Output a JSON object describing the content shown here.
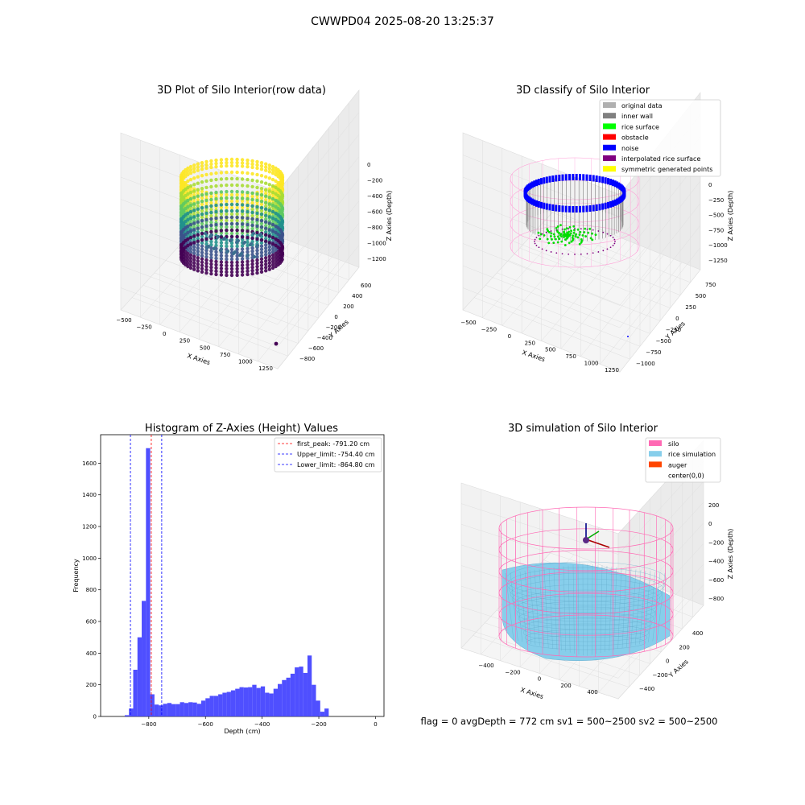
{
  "suptitle": "CWWPD04 2025-08-20 13:25:37",
  "footer": "flag = 0     avgDepth = 772 cm  sv1 = 500~2500  sv2 = 500~2500",
  "panel1": {
    "title": "3D Plot of Silo Interior(row data)",
    "xlabel": "X Axies",
    "ylabel": "Y Axies",
    "zlabel": "Z Axies (Depth)",
    "xticks": [
      "−500",
      "−250",
      "0",
      "250",
      "500",
      "750",
      "1000",
      "1250"
    ],
    "yticks": [
      "600",
      "400",
      "200",
      "0",
      "−200",
      "−400",
      "−600",
      "−800"
    ],
    "zticks": [
      "0",
      "−200",
      "−400",
      "−600",
      "−800",
      "−1000",
      "−1200"
    ],
    "colormap": "viridis"
  },
  "panel2": {
    "title": "3D classify of Silo Interior",
    "xlabel": "X Axies",
    "ylabel": "Y Axies",
    "zlabel": "Z Axies (Depth)",
    "xticks": [
      "−500",
      "−250",
      "0",
      "250",
      "500",
      "750",
      "1000",
      "1250"
    ],
    "yticks": [
      "750",
      "500",
      "250",
      "0",
      "−250",
      "−500",
      "−750",
      "−1000"
    ],
    "zticks": [
      "0",
      "−250",
      "−500",
      "−750",
      "−1000",
      "−1250"
    ],
    "legend": [
      {
        "label": "original data",
        "color": "#b0b0b0"
      },
      {
        "label": "inner wall",
        "color": "#808080"
      },
      {
        "label": "rice surface",
        "color": "#00ff00"
      },
      {
        "label": "obstacle",
        "color": "#ff0000"
      },
      {
        "label": "noise",
        "color": "#0000ff"
      },
      {
        "label": "interpolated rice surface",
        "color": "#800080"
      },
      {
        "label": "symmetric generated points",
        "color": "#ffff00"
      }
    ]
  },
  "panel4": {
    "title": "3D simulation of Silo Interior",
    "xlabel": "X Axies",
    "ylabel": "Y Axies",
    "zlabel": "Z Axies (Depth)",
    "xticks": [
      "−400",
      "−200",
      "0",
      "200",
      "400"
    ],
    "yticks": [
      "400",
      "200",
      "0",
      "−200",
      "−400"
    ],
    "zticks": [
      "200",
      "0",
      "−200",
      "−400",
      "−600",
      "−800"
    ],
    "legend": [
      {
        "label": "silo",
        "color": "#ff69b4"
      },
      {
        "label": "rice simulation",
        "color": "#87ceeb"
      },
      {
        "label": "auger",
        "color": "#ff4500"
      },
      {
        "label": "center(0,0)",
        "color": ""
      }
    ]
  },
  "chart_data": {
    "type": "bar",
    "title": "Histogram of Z-Axies (Height) Values",
    "xlabel": "Depth (cm)",
    "ylabel": "Frequency",
    "xlim": [
      -970,
      30
    ],
    "ylim": [
      0,
      1780
    ],
    "xticks": [
      -800,
      -600,
      -400,
      -200,
      0
    ],
    "yticks": [
      0,
      200,
      400,
      600,
      800,
      1000,
      1200,
      1400,
      1600
    ],
    "bar_color": "#4040ff",
    "bin_width": 15,
    "bins_start": -885,
    "values": [
      8,
      50,
      295,
      500,
      730,
      1695,
      140,
      75,
      70,
      80,
      85,
      78,
      78,
      90,
      85,
      90,
      88,
      80,
      100,
      115,
      130,
      130,
      140,
      150,
      155,
      165,
      175,
      185,
      183,
      185,
      200,
      180,
      190,
      150,
      145,
      175,
      205,
      230,
      245,
      270,
      310,
      315,
      275,
      385,
      200,
      100,
      30,
      50
    ],
    "lines": [
      {
        "name": "first_peak: -791.20 cm",
        "x": -791.2,
        "color": "#ff0000",
        "style": "dashed"
      },
      {
        "name": "Upper_limit: -754.40 cm",
        "x": -754.4,
        "color": "#0000ff",
        "style": "dashed"
      },
      {
        "name": "Lower_limit: -864.80 cm",
        "x": -864.8,
        "color": "#0000ff",
        "style": "dashed"
      }
    ],
    "legend_position": "upper right"
  }
}
